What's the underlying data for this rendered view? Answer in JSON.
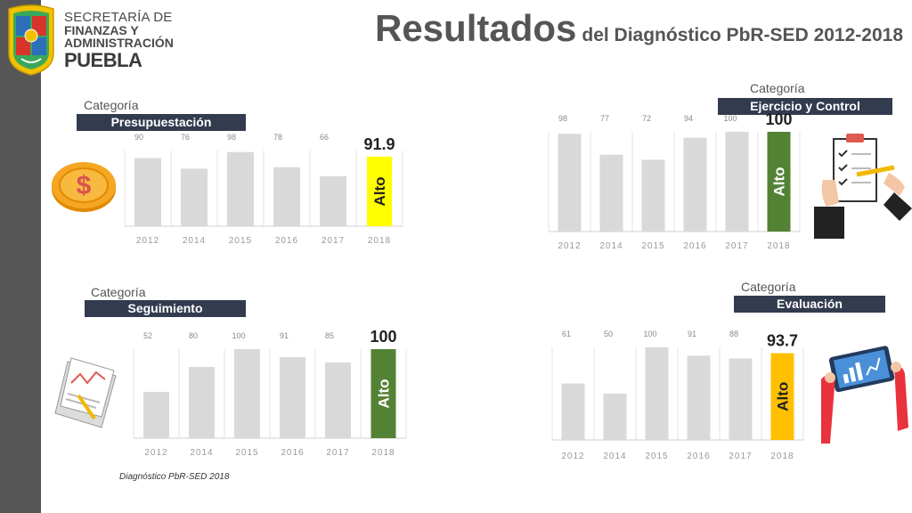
{
  "header": {
    "org_line1": "SECRETARÍA DE",
    "org_line2": "FINANZAS Y",
    "org_line3": "ADMINISTRACIÓN",
    "org_line4": "PUEBLA",
    "title_main": "Resultados",
    "title_sub": "del Diagnóstico PbR-SED 2012-2018"
  },
  "panels": [
    {
      "category_label": "Categoría",
      "name": "Presupuestación",
      "icon": "coin-dollar-icon"
    },
    {
      "category_label": "Categoría",
      "name": "Ejercicio y Control",
      "icon": "checklist-clipboard-icon"
    },
    {
      "category_label": "Categoría",
      "name": "Seguimiento",
      "icon": "report-chart-paper-icon"
    },
    {
      "category_label": "Categoría",
      "name": "Evaluación",
      "icon": "tablet-analytics-icon"
    }
  ],
  "chart_data": [
    {
      "type": "bar",
      "title": "Presupuestación",
      "categories": [
        "2012",
        "2014",
        "2015",
        "2016",
        "2017",
        "2018"
      ],
      "values": [
        90,
        76,
        98,
        78,
        66,
        91.9
      ],
      "value_labels": [
        "90",
        "76",
        "98",
        "78",
        "66",
        "91.9"
      ],
      "highlight": {
        "index": 5,
        "label": "Alto",
        "color": "#ffff00",
        "text_color": "#222222"
      },
      "ylim": [
        0,
        100
      ],
      "grid": "vertical"
    },
    {
      "type": "bar",
      "title": "Ejercicio y Control",
      "categories": [
        "2012",
        "2014",
        "2015",
        "2016",
        "2017",
        "2018"
      ],
      "values": [
        98,
        77,
        72,
        94,
        100,
        100
      ],
      "value_labels": [
        "98",
        "77",
        "72",
        "94",
        "100",
        "100"
      ],
      "highlight": {
        "index": 5,
        "label": "Alto",
        "color": "#548235",
        "text_color": "#ffffff"
      },
      "ylim": [
        0,
        100
      ],
      "grid": "vertical"
    },
    {
      "type": "bar",
      "title": "Seguimiento",
      "categories": [
        "2012",
        "2014",
        "2015",
        "2016",
        "2017",
        "2018"
      ],
      "values": [
        52,
        80,
        100,
        91,
        85,
        100
      ],
      "value_labels": [
        "52",
        "80",
        "100",
        "91",
        "85",
        "100"
      ],
      "highlight": {
        "index": 5,
        "label": "Alto",
        "color": "#548235",
        "text_color": "#ffffff"
      },
      "ylim": [
        0,
        100
      ],
      "grid": "vertical"
    },
    {
      "type": "bar",
      "title": "Evaluación",
      "categories": [
        "2012",
        "2014",
        "2015",
        "2016",
        "2017",
        "2018"
      ],
      "values": [
        61,
        50,
        100,
        91,
        88,
        93.7
      ],
      "value_labels": [
        "61",
        "50",
        "100",
        "91",
        "88",
        "93.7"
      ],
      "highlight": {
        "index": 5,
        "label": "Alto",
        "color": "#ffc000",
        "text_color": "#222222"
      },
      "ylim": [
        0,
        100
      ],
      "grid": "vertical"
    }
  ],
  "footer": {
    "note": "Diagnóstico PbR-SED 2018"
  }
}
